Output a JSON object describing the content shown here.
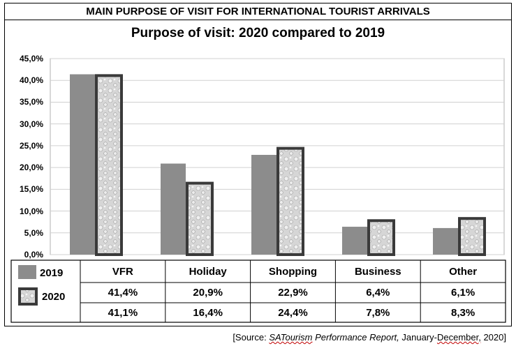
{
  "header": {
    "main_title": "MAIN PURPOSE OF VISIT FOR INTERNATIONAL TOURIST ARRIVALS"
  },
  "source": {
    "prefix": "[Source: ",
    "publication_italic_underlined": "SATourism",
    "publication_italic_rest": " Performance Report,",
    "range_a": " January-",
    "range_b": "December,",
    "range_c": " 2020]"
  },
  "colors": {
    "series_2019_fill": "#8c8c8c",
    "series_2020_fill": "#d4d4d4",
    "series_2020_border": "#3a3a3a",
    "grid": "#d0d0d0"
  },
  "chart_data": {
    "type": "bar",
    "title": "Purpose of visit:  2020 compared to 2019",
    "categories": [
      "VFR",
      "Holiday",
      "Shopping",
      "Business",
      "Other"
    ],
    "series": [
      {
        "name": "2019",
        "values": [
          41.4,
          20.9,
          22.9,
          6.4,
          6.1
        ],
        "labels": [
          "41,4%",
          "20,9%",
          "22,9%",
          "6,4%",
          "6,1%"
        ]
      },
      {
        "name": "2020",
        "values": [
          41.1,
          16.4,
          24.4,
          7.8,
          8.3
        ],
        "labels": [
          "41,1%",
          "16,4%",
          "24,4%",
          "7,8%",
          "8,3%"
        ]
      }
    ],
    "ylim": [
      0,
      45
    ],
    "yticks": [
      "0,0%",
      "5,0%",
      "10,0%",
      "15,0%",
      "20,0%",
      "25,0%",
      "30,0%",
      "35,0%",
      "40,0%",
      "45,0%"
    ],
    "grid": true,
    "legend": "data-table"
  }
}
